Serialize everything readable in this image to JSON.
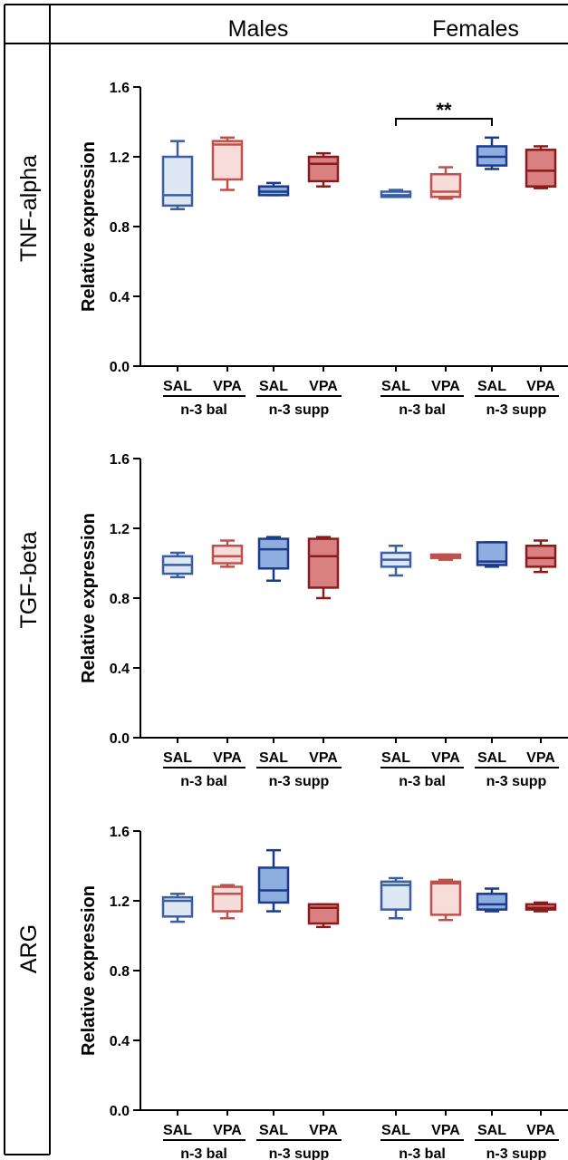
{
  "headers": {
    "males": "Males",
    "females": "Females"
  },
  "categories": [
    "SAL",
    "VPA",
    "SAL",
    "VPA",
    "SAL",
    "VPA",
    "SAL",
    "VPA"
  ],
  "group_labels": [
    "n-3 bal",
    "n-3 supp",
    "n-3 bal",
    "n-3 supp"
  ],
  "colors": {
    "sal_bal_stroke": "#3a5fa0",
    "sal_bal_fill": "#dde6f3",
    "vpa_bal_stroke": "#c0504d",
    "vpa_bal_fill": "#f7dcda",
    "sal_supp_stroke": "#1b3a8c",
    "sal_supp_fill": "#8eaee0",
    "vpa_supp_stroke": "#8b1a1a",
    "vpa_supp_fill": "#d98080"
  },
  "chart_data": [
    {
      "type": "box",
      "row_label": "TNF-alpha",
      "ylabel": "Relative expression",
      "ylim": [
        0,
        1.6
      ],
      "yticks": [
        "0.0",
        "0.4",
        "0.8",
        "1.2",
        "1.6"
      ],
      "boxes": [
        {
          "min": 0.9,
          "q1": 0.92,
          "median": 0.98,
          "q3": 1.2,
          "max": 1.29
        },
        {
          "min": 1.01,
          "q1": 1.07,
          "median": 1.27,
          "q3": 1.29,
          "max": 1.31
        },
        {
          "min": 0.98,
          "q1": 0.98,
          "median": 1.0,
          "q3": 1.03,
          "max": 1.05
        },
        {
          "min": 1.03,
          "q1": 1.06,
          "median": 1.16,
          "q3": 1.2,
          "max": 1.22
        },
        {
          "min": 0.97,
          "q1": 0.97,
          "median": 0.98,
          "q3": 1.0,
          "max": 1.01
        },
        {
          "min": 0.96,
          "q1": 0.97,
          "median": 1.0,
          "q3": 1.1,
          "max": 1.14
        },
        {
          "min": 1.13,
          "q1": 1.15,
          "median": 1.2,
          "q3": 1.26,
          "max": 1.31
        },
        {
          "min": 1.02,
          "q1": 1.03,
          "median": 1.12,
          "q3": 1.24,
          "max": 1.26
        }
      ],
      "significance": {
        "from": 4,
        "to": 6,
        "label": "**"
      }
    },
    {
      "type": "box",
      "row_label": "TGF-beta",
      "ylabel": "Relative expression",
      "ylim": [
        0,
        1.6
      ],
      "yticks": [
        "0.0",
        "0.4",
        "0.8",
        "1.2",
        "1.6"
      ],
      "boxes": [
        {
          "min": 0.92,
          "q1": 0.94,
          "median": 0.99,
          "q3": 1.04,
          "max": 1.06
        },
        {
          "min": 0.98,
          "q1": 1.0,
          "median": 1.04,
          "q3": 1.1,
          "max": 1.13
        },
        {
          "min": 0.9,
          "q1": 0.97,
          "median": 1.08,
          "q3": 1.14,
          "max": 1.15
        },
        {
          "min": 0.8,
          "q1": 0.86,
          "median": 1.04,
          "q3": 1.14,
          "max": 1.15
        },
        {
          "min": 0.93,
          "q1": 0.98,
          "median": 1.02,
          "q3": 1.06,
          "max": 1.1
        },
        {
          "min": 1.02,
          "q1": 1.03,
          "median": 1.04,
          "q3": 1.05,
          "max": 1.05
        },
        {
          "min": 0.98,
          "q1": 0.99,
          "median": 1.01,
          "q3": 1.12,
          "max": 1.12
        },
        {
          "min": 0.95,
          "q1": 0.98,
          "median": 1.03,
          "q3": 1.1,
          "max": 1.13
        }
      ]
    },
    {
      "type": "box",
      "row_label": "ARG",
      "ylabel": "Relative expression",
      "ylim": [
        0,
        1.6
      ],
      "yticks": [
        "0.0",
        "0.4",
        "0.8",
        "1.2",
        "1.6"
      ],
      "boxes": [
        {
          "min": 1.08,
          "q1": 1.11,
          "median": 1.2,
          "q3": 1.22,
          "max": 1.24
        },
        {
          "min": 1.1,
          "q1": 1.14,
          "median": 1.24,
          "q3": 1.28,
          "max": 1.29
        },
        {
          "min": 1.14,
          "q1": 1.19,
          "median": 1.26,
          "q3": 1.39,
          "max": 1.49
        },
        {
          "min": 1.05,
          "q1": 1.07,
          "median": 1.16,
          "q3": 1.18,
          "max": 1.18
        },
        {
          "min": 1.1,
          "q1": 1.15,
          "median": 1.29,
          "q3": 1.31,
          "max": 1.33
        },
        {
          "min": 1.09,
          "q1": 1.12,
          "median": 1.3,
          "q3": 1.31,
          "max": 1.32
        },
        {
          "min": 1.14,
          "q1": 1.15,
          "median": 1.18,
          "q3": 1.24,
          "max": 1.27
        },
        {
          "min": 1.14,
          "q1": 1.15,
          "median": 1.16,
          "q3": 1.18,
          "max": 1.19
        }
      ]
    }
  ]
}
